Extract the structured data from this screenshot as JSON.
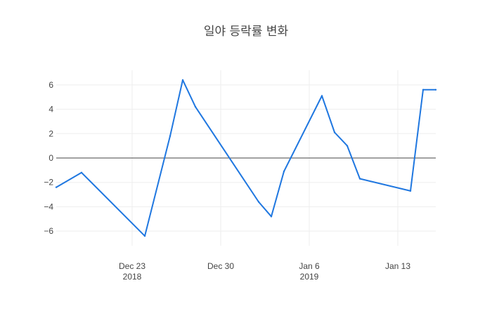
{
  "chart_data": {
    "type": "line",
    "title": "일야 등락률 변화",
    "xlabel": "",
    "ylabel": "",
    "x": [
      "2018-12-17",
      "2018-12-19",
      "2018-12-24",
      "2018-12-26",
      "2018-12-27",
      "2018-12-28",
      "2019-01-02",
      "2019-01-03",
      "2019-01-04",
      "2019-01-07",
      "2019-01-08",
      "2019-01-09",
      "2019-01-10",
      "2019-01-14",
      "2019-01-15",
      "2019-01-16"
    ],
    "series": [
      {
        "values": [
          -2.4,
          -1.2,
          -6.4,
          1.8,
          6.4,
          4.2,
          -3.6,
          -4.8,
          -1.1,
          5.1,
          2.1,
          1.0,
          -1.7,
          -2.7,
          5.6,
          5.6
        ],
        "color": "#1f77e0"
      }
    ],
    "xlim": [
      "2018-12-17",
      "2019-01-16"
    ],
    "ylim": [
      -7.2,
      7.2
    ],
    "x_ticks": [
      {
        "date": "2018-12-23",
        "label": "Dec 23",
        "sub": "2018"
      },
      {
        "date": "2018-12-30",
        "label": "Dec 30",
        "sub": ""
      },
      {
        "date": "2019-01-06",
        "label": "Jan 6",
        "sub": "2019"
      },
      {
        "date": "2019-01-13",
        "label": "Jan 13",
        "sub": ""
      }
    ],
    "y_ticks": [
      6,
      4,
      2,
      0,
      -2,
      -4,
      -6
    ],
    "y_tick_labels": [
      "6",
      "4",
      "2",
      "0",
      "−2",
      "−4",
      "−6"
    ],
    "grid": true,
    "zero_line": true
  }
}
